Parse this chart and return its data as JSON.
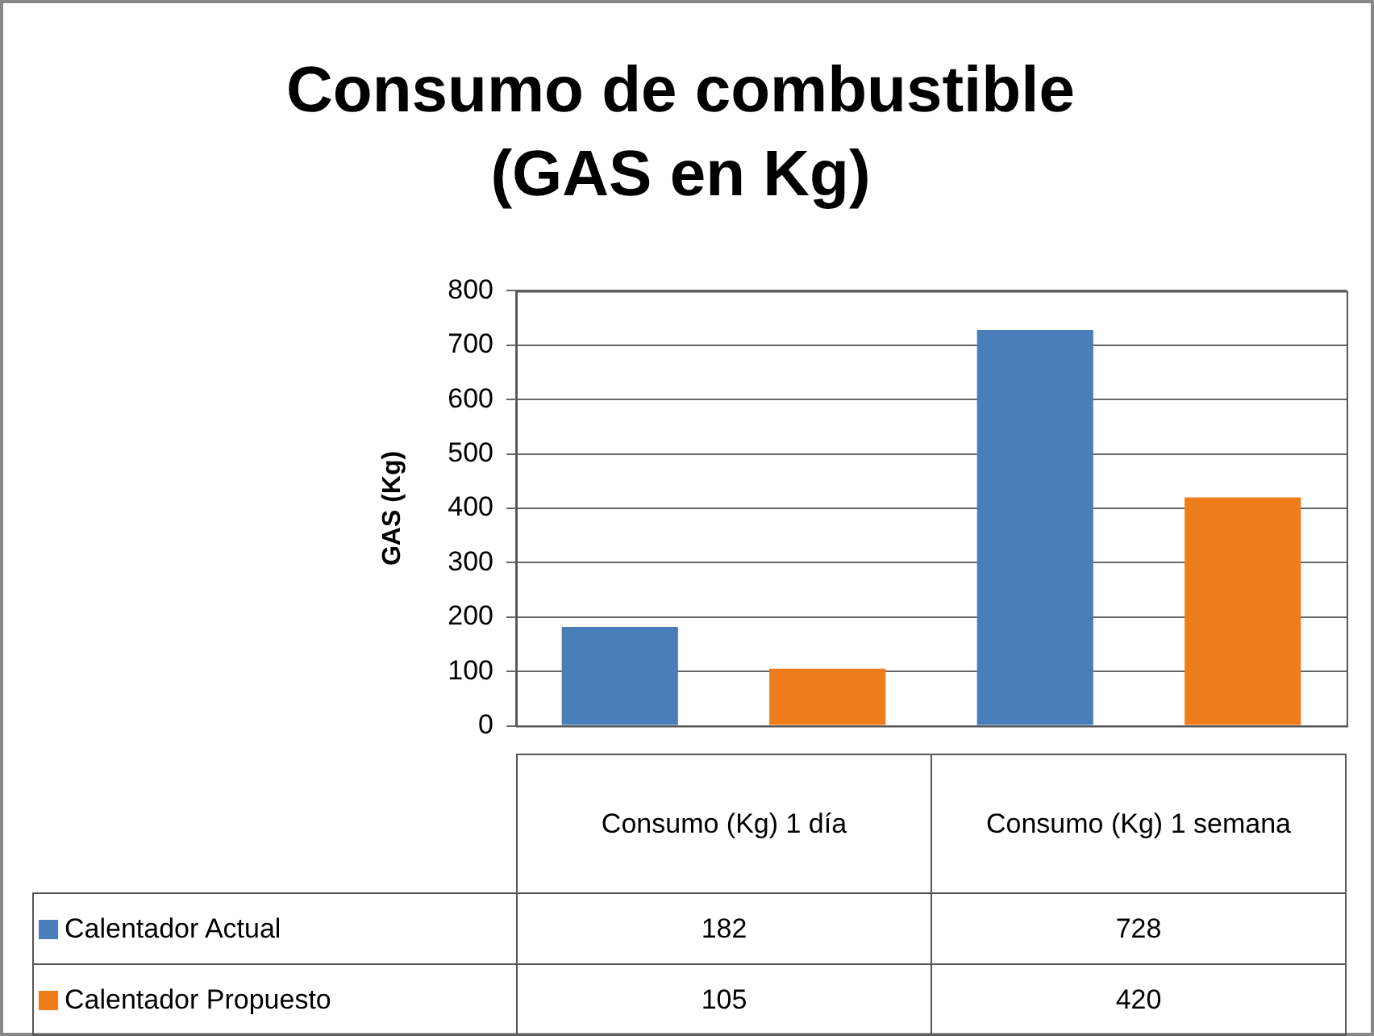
{
  "chart_data": {
    "type": "bar",
    "title": "Consumo de combustible (GAS en Kg)",
    "ylabel": "GAS (Kg)",
    "categories": [
      "Consumo (Kg) 1 día",
      "Consumo (Kg) 1 semana"
    ],
    "series": [
      {
        "name": "Calentador Actual",
        "color": "#4a7ebb",
        "values": [
          182,
          728
        ]
      },
      {
        "name": "Calentador Propuesto",
        "color": "#f07d1b",
        "values": [
          105,
          420
        ]
      }
    ],
    "ylim": [
      0,
      800
    ],
    "yticks": [
      0,
      100,
      200,
      300,
      400,
      500,
      600,
      700,
      800
    ],
    "grid": "y",
    "legend": "bottom",
    "data_labels": true
  }
}
